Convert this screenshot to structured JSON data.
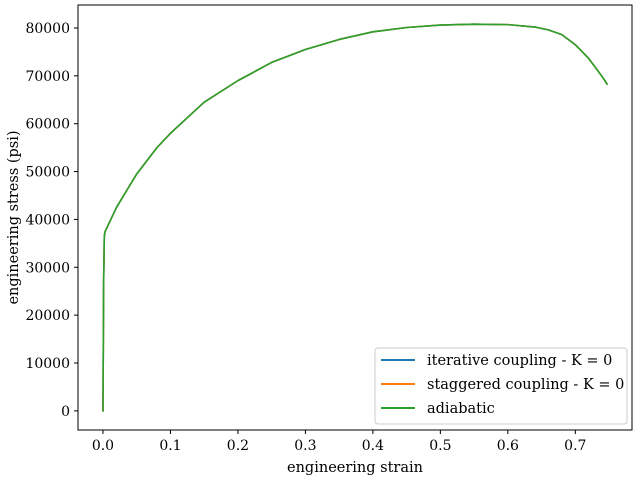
{
  "chart_data": {
    "type": "line",
    "title": "",
    "xlabel": "engineering strain",
    "ylabel": "engineering stress (psi)",
    "xlim": [
      -0.037,
      0.784
    ],
    "ylim": [
      -4000,
      84800
    ],
    "xticks": [
      0.0,
      0.1,
      0.2,
      0.3,
      0.4,
      0.5,
      0.6,
      0.7
    ],
    "xtick_labels": [
      "0.0",
      "0.1",
      "0.2",
      "0.3",
      "0.4",
      "0.5",
      "0.6",
      "0.7"
    ],
    "yticks": [
      0,
      10000,
      20000,
      30000,
      40000,
      50000,
      60000,
      70000,
      80000
    ],
    "ytick_labels": [
      "0",
      "10000",
      "20000",
      "30000",
      "40000",
      "50000",
      "60000",
      "70000",
      "80000"
    ],
    "grid": false,
    "legend_position": "lower-right",
    "series": [
      {
        "name": "iterative coupling - K = 0",
        "color": "#1f77b4",
        "x": [
          0,
          0.001,
          0.002,
          0.003,
          0.01,
          0.02,
          0.05,
          0.08,
          0.1,
          0.15,
          0.2,
          0.25,
          0.3,
          0.35,
          0.4,
          0.45,
          0.5,
          0.55,
          0.6,
          0.64,
          0.66,
          0.68,
          0.7,
          0.72,
          0.74,
          0.747
        ],
        "y": [
          0,
          27000,
          36500,
          37400,
          39500,
          42500,
          49500,
          55000,
          58000,
          64500,
          69000,
          72800,
          75500,
          77600,
          79200,
          80100,
          80600,
          80800,
          80700,
          80200,
          79600,
          78600,
          76500,
          73600,
          69800,
          68300
        ]
      },
      {
        "name": "staggered coupling - K = 0",
        "color": "#ff7f0e",
        "x": [
          0,
          0.001,
          0.002,
          0.003,
          0.01,
          0.02,
          0.05,
          0.08,
          0.1,
          0.15,
          0.2,
          0.25,
          0.3,
          0.35,
          0.4,
          0.45,
          0.5,
          0.55,
          0.6,
          0.64,
          0.66,
          0.68,
          0.7,
          0.72,
          0.74,
          0.747
        ],
        "y": [
          0,
          27000,
          36500,
          37400,
          39500,
          42500,
          49500,
          55000,
          58000,
          64500,
          69000,
          72800,
          75500,
          77600,
          79200,
          80100,
          80600,
          80800,
          80700,
          80200,
          79600,
          78600,
          76500,
          73600,
          69800,
          68300
        ]
      },
      {
        "name": "adiabatic",
        "color": "#2ca02c",
        "x": [
          0,
          0.001,
          0.002,
          0.003,
          0.01,
          0.02,
          0.05,
          0.08,
          0.1,
          0.15,
          0.2,
          0.25,
          0.3,
          0.35,
          0.4,
          0.45,
          0.5,
          0.55,
          0.6,
          0.64,
          0.66,
          0.68,
          0.7,
          0.72,
          0.74,
          0.747
        ],
        "y": [
          0,
          27000,
          36500,
          37400,
          39500,
          42500,
          49500,
          55000,
          58000,
          64500,
          69000,
          72800,
          75500,
          77600,
          79200,
          80100,
          80600,
          80800,
          80700,
          80200,
          79600,
          78600,
          76500,
          73600,
          69800,
          68300
        ]
      }
    ]
  }
}
